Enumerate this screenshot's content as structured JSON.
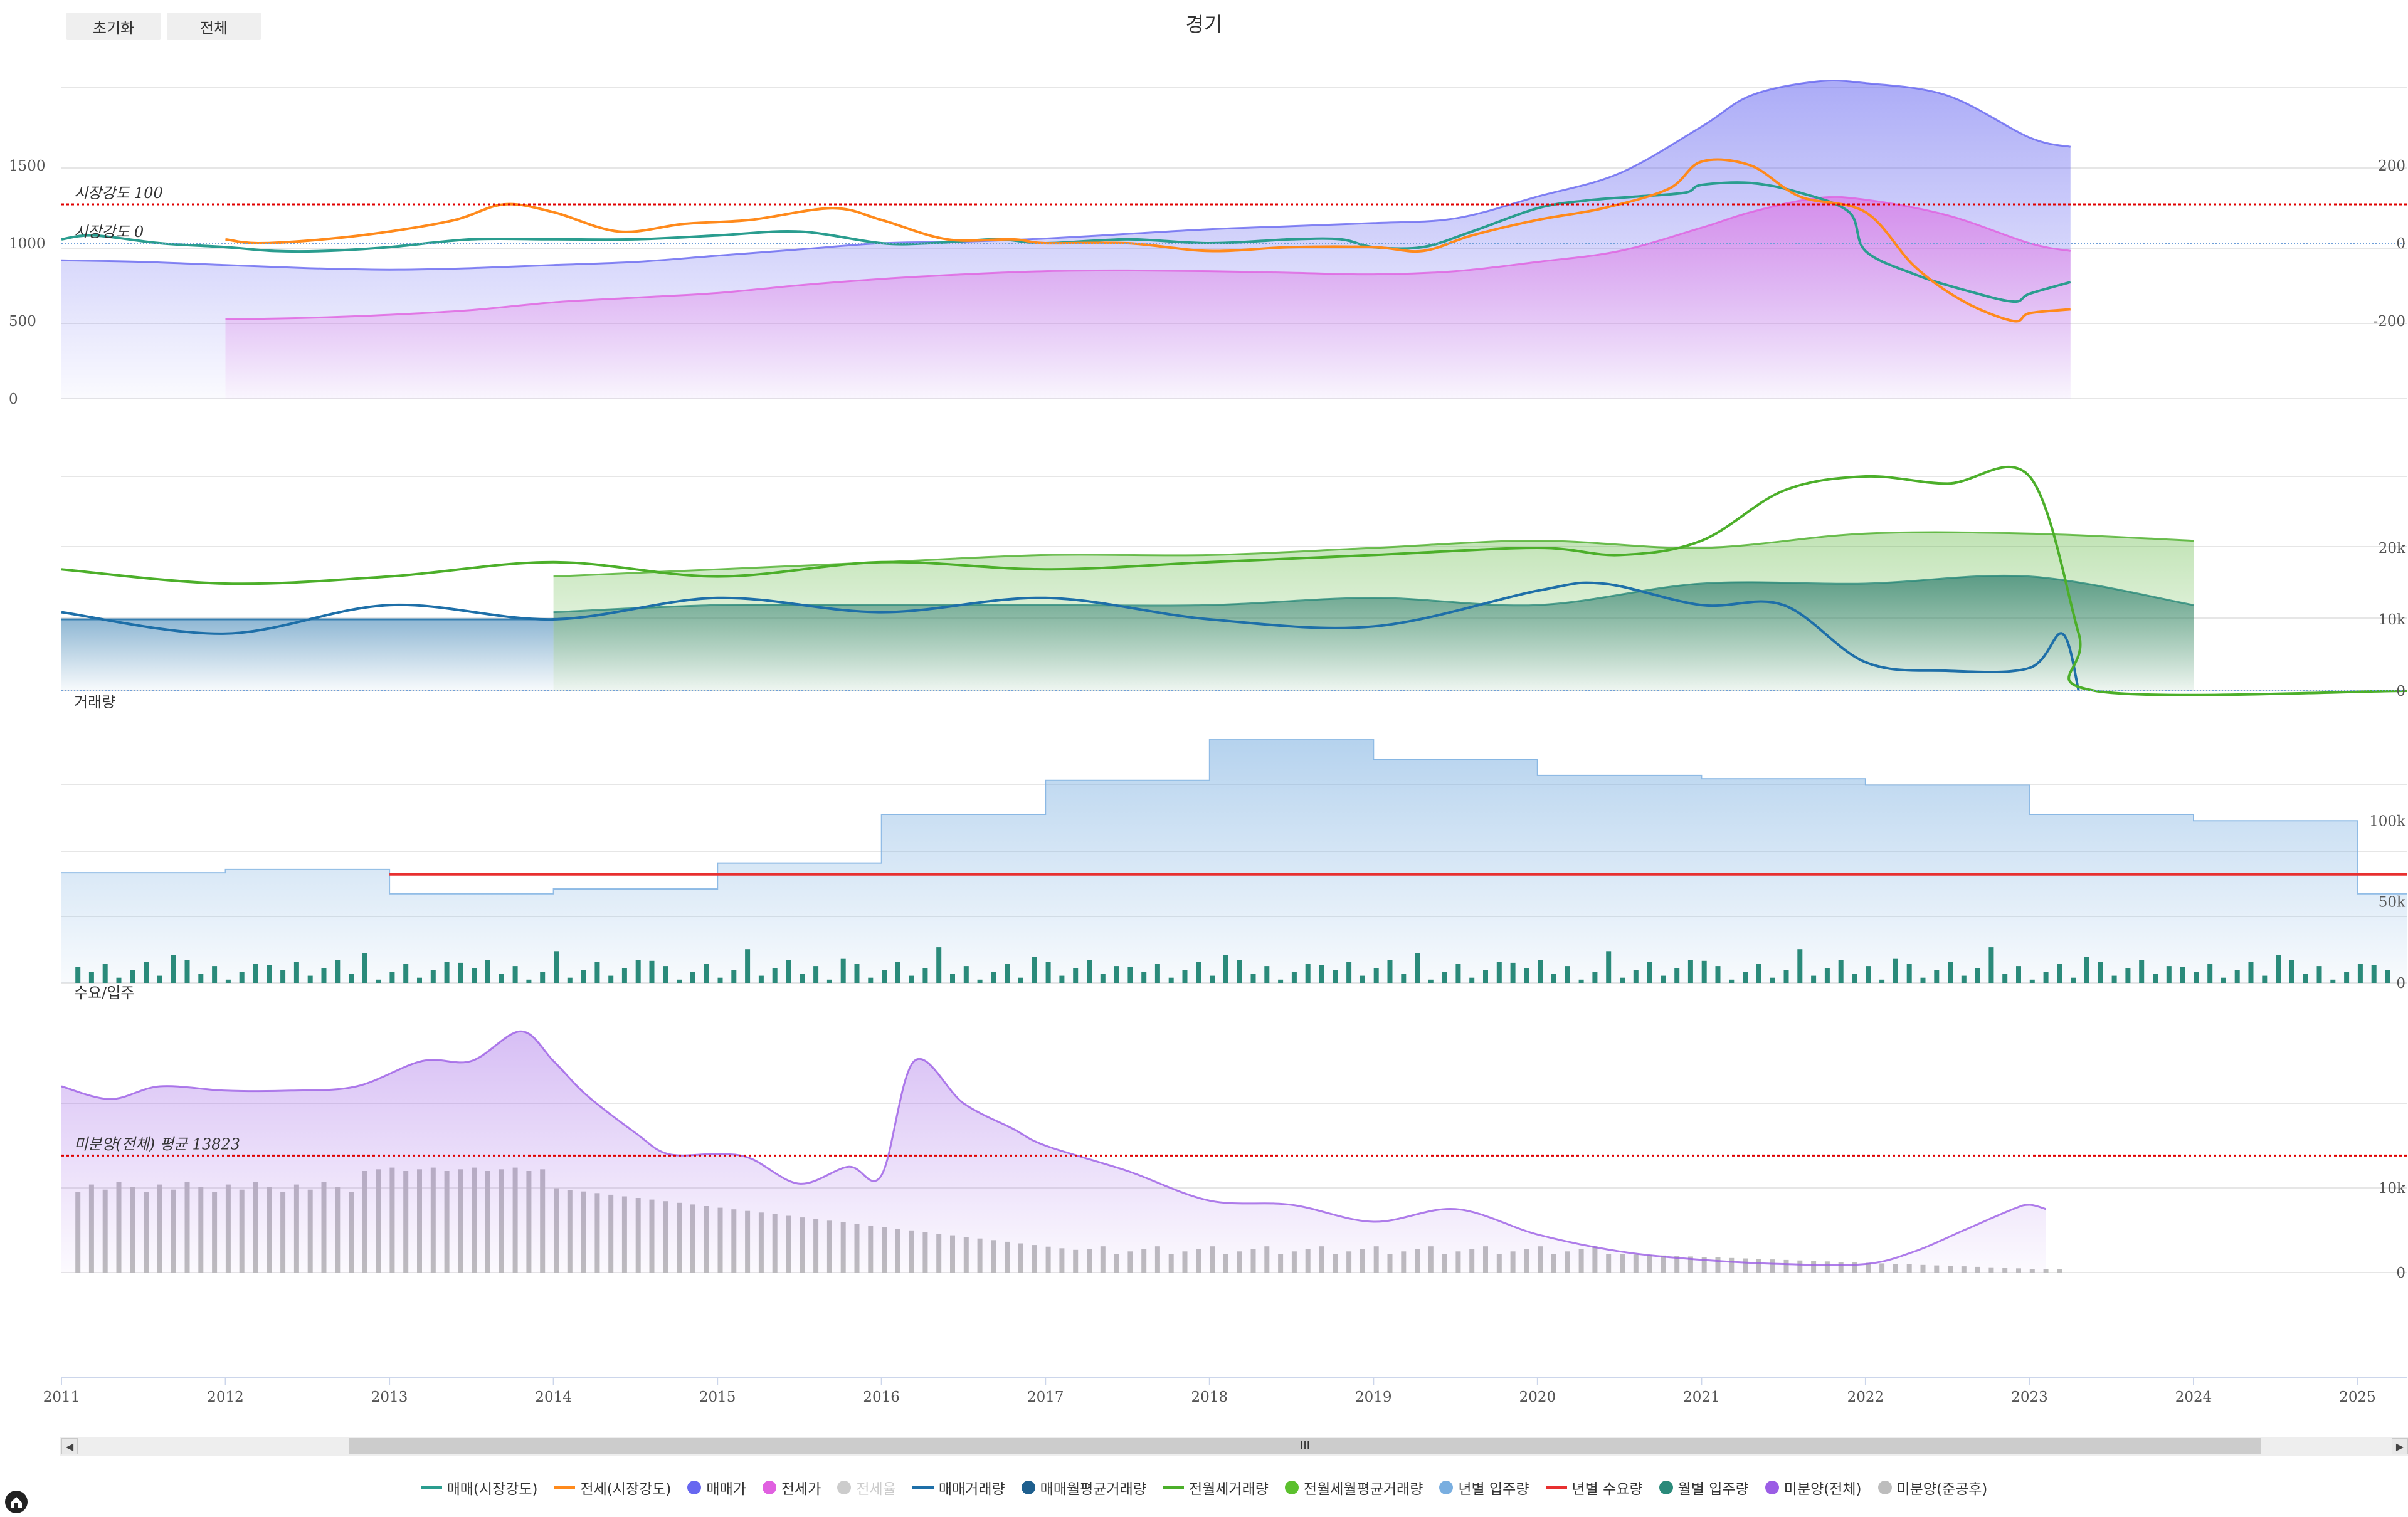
{
  "toolbar": {
    "reset_label": "초기화",
    "all_label": "전체"
  },
  "chart_data": {
    "type": "line",
    "title": "경기",
    "x_range": [
      2011,
      2025.3
    ],
    "x_ticks": [
      "2011",
      "2012",
      "2013",
      "2014",
      "2015",
      "2016",
      "2017",
      "2018",
      "2019",
      "2020",
      "2021",
      "2022",
      "2023",
      "2024",
      "2025"
    ],
    "panels": [
      {
        "name": "price",
        "left_axis": {
          "range": [
            0,
            2000
          ],
          "ticks": [
            "0",
            "500",
            "1000",
            "1500"
          ]
        },
        "right_axis": {
          "range": [
            -400,
            400
          ],
          "ticks": [
            "-200",
            "0",
            "200"
          ]
        },
        "annotations": [
          {
            "text": "시장강도 100",
            "right_value": 100,
            "style": "dotted",
            "color": "#e00000"
          },
          {
            "text": "시장강도 0",
            "right_value": 0,
            "style": "dotted",
            "color": "#6f9fd8"
          }
        ],
        "series": [
          {
            "name": "매매가",
            "type": "area",
            "axis": "left",
            "color": "#6767f0",
            "x": [
              2011,
              2011.5,
              2012,
              2012.5,
              2013,
              2013.5,
              2014,
              2014.5,
              2015,
              2015.5,
              2016,
              2016.5,
              2017,
              2017.5,
              2018,
              2018.5,
              2019,
              2019.5,
              2020,
              2020.5,
              2021,
              2021.3,
              2021.7,
              2022,
              2022.5,
              2023,
              2023.25
            ],
            "y": [
              890,
              880,
              860,
              840,
              830,
              840,
              860,
              880,
              920,
              960,
              1000,
              1010,
              1030,
              1060,
              1090,
              1110,
              1130,
              1160,
              1300,
              1450,
              1750,
              1950,
              2040,
              2030,
              1950,
              1680,
              1620
            ]
          },
          {
            "name": "전세가",
            "type": "area",
            "axis": "left",
            "color": "#e060e0",
            "x": [
              2012,
              2012.5,
              2013,
              2013.5,
              2014,
              2014.5,
              2015,
              2015.5,
              2016,
              2016.5,
              2017,
              2017.5,
              2018,
              2018.5,
              2019,
              2019.5,
              2020,
              2020.5,
              2021,
              2021.3,
              2021.7,
              2022,
              2022.5,
              2023,
              2023.25
            ],
            "y": [
              510,
              520,
              540,
              570,
              620,
              650,
              680,
              730,
              770,
              800,
              820,
              825,
              820,
              810,
              800,
              820,
              880,
              950,
              1100,
              1200,
              1290,
              1280,
              1180,
              1000,
              950
            ]
          },
          {
            "name": "매매(시장강도)",
            "type": "line",
            "axis": "right",
            "color": "#2a9d8f",
            "x": [
              2011,
              2011.2,
              2011.6,
              2012,
              2012.3,
              2012.6,
              2013,
              2013.5,
              2014,
              2014.5,
              2015,
              2015.5,
              2016,
              2016.3,
              2016.7,
              2017,
              2017.5,
              2018,
              2018.5,
              2018.8,
              2019,
              2019.3,
              2019.6,
              2020,
              2020.3,
              2020.6,
              2020.9,
              2021,
              2021.3,
              2021.6,
              2021.9,
              2022,
              2022.3,
              2022.6,
              2022.9,
              2023,
              2023.25
            ],
            "y": [
              10,
              20,
              0,
              -10,
              -20,
              -20,
              -10,
              10,
              10,
              10,
              20,
              30,
              0,
              0,
              10,
              0,
              10,
              0,
              10,
              10,
              -10,
              -10,
              30,
              90,
              110,
              120,
              130,
              150,
              155,
              130,
              80,
              -20,
              -80,
              -120,
              -150,
              -130,
              -100
            ]
          },
          {
            "name": "전세(시장강도)",
            "type": "line",
            "axis": "right",
            "color": "#ff8a1c",
            "x": [
              2012,
              2012.2,
              2012.6,
              2013,
              2013.4,
              2013.7,
              2014,
              2014.4,
              2014.8,
              2015.2,
              2015.7,
              2016,
              2016.4,
              2016.8,
              2017,
              2017.5,
              2018,
              2018.5,
              2019,
              2019.3,
              2019.6,
              2020,
              2020.4,
              2020.8,
              2021,
              2021.3,
              2021.6,
              2022,
              2022.3,
              2022.6,
              2022.9,
              2023,
              2023.25
            ],
            "y": [
              10,
              0,
              10,
              30,
              60,
              100,
              80,
              30,
              50,
              60,
              90,
              60,
              10,
              10,
              0,
              0,
              -20,
              -10,
              -10,
              -20,
              20,
              60,
              90,
              140,
              210,
              200,
              120,
              80,
              -60,
              -150,
              -200,
              -180,
              -170
            ]
          }
        ]
      },
      {
        "name": "volume",
        "label": "거래량",
        "right_axis": {
          "range": [
            0,
            30000
          ],
          "ticks": [
            "0",
            "10k",
            "20k"
          ]
        },
        "series": [
          {
            "name": "매매거래량",
            "type": "line",
            "color": "#1e6fa8",
            "x": [
              2011,
              2012,
              2013,
              2014,
              2015,
              2016,
              2017,
              2018,
              2019,
              2020,
              2020.4,
              2021,
              2021.5,
              2022,
              2022.5,
              2023,
              2023.2,
              2023.3
            ],
            "y": [
              11000,
              8000,
              12000,
              10000,
              13000,
              11000,
              13000,
              10000,
              9000,
              14000,
              15000,
              12000,
              12000,
              4000,
              2800,
              3200,
              8000,
              0
            ]
          },
          {
            "name": "전월세거래량",
            "type": "line",
            "color": "#4caf2a",
            "x": [
              2011,
              2012,
              2013,
              2014,
              2015,
              2016,
              2017,
              2018,
              2019,
              2020,
              2020.5,
              2021,
              2021.5,
              2022,
              2022.5,
              2023,
              2023.3,
              2023.4,
              2025.3
            ],
            "y": [
              17000,
              15000,
              16000,
              18000,
              16000,
              18000,
              17000,
              18000,
              19000,
              20000,
              19000,
              21000,
              28000,
              30000,
              29000,
              30000,
              8000,
              0,
              0
            ]
          },
          {
            "name": "매매월평균거래량",
            "type": "area",
            "color": "#1e6fa8",
            "x": [
              2011,
              2012,
              2013,
              2014
            ],
            "y": [
              10000,
              10000,
              10000,
              10000
            ]
          },
          {
            "name": "전월세월평균거래량",
            "type": "area",
            "color": "#4caf2a",
            "x": [
              2014,
              2015,
              2016,
              2017,
              2018,
              2019,
              2020,
              2021,
              2022,
              2023,
              2024
            ],
            "y": [
              16000,
              17000,
              18000,
              19000,
              19000,
              20000,
              21000,
              20000,
              22000,
              22000,
              21000
            ]
          },
          {
            "name": "월별 입주량",
            "type": "area",
            "color": "#2a8a7a",
            "x": [
              2014,
              2015,
              2016,
              2017,
              2018,
              2019,
              2020,
              2021,
              2022,
              2023,
              2024
            ],
            "y": [
              11000,
              12000,
              12000,
              12000,
              12000,
              13000,
              12000,
              15000,
              15000,
              16000,
              12000
            ]
          }
        ]
      },
      {
        "name": "supply",
        "label": "수요/입주",
        "right_axis": {
          "range": [
            0,
            150000
          ],
          "ticks": [
            "0",
            "50k",
            "100k"
          ]
        },
        "series": [
          {
            "name": "년별 입주량",
            "type": "step-area",
            "color": "#79aee0",
            "x": [
              2011,
              2012,
              2013,
              2014,
              2015,
              2016,
              2017,
              2018,
              2019,
              2020,
              2021,
              2022,
              2023,
              2024,
              2025,
              2025.3
            ],
            "y": [
              68000,
              70000,
              55000,
              58000,
              74000,
              104000,
              125000,
              150000,
              138000,
              128000,
              126000,
              122000,
              104000,
              100000,
              55000,
              55000
            ]
          },
          {
            "name": "년별 수요량",
            "type": "line",
            "color": "#e83030",
            "x": [
              2013,
              2025.3
            ],
            "y": [
              67000,
              67000
            ]
          },
          {
            "name": "월별 입주량",
            "type": "bar",
            "color": "#2a8a7a",
            "note": "monthly completions, approx 2k–22k"
          }
        ]
      },
      {
        "name": "unsold",
        "right_axis": {
          "range": [
            0,
            30000
          ],
          "ticks": [
            "0",
            "10k"
          ]
        },
        "annotations": [
          {
            "text": "미분양(전체) 평균 13823",
            "value": 13823,
            "style": "dotted",
            "color": "#e00000"
          }
        ],
        "series": [
          {
            "name": "미분양(전체)",
            "type": "area",
            "color": "#9b5de5",
            "x": [
              2011,
              2011.3,
              2011.6,
              2012,
              2012.4,
              2012.8,
              2013.2,
              2013.5,
              2013.8,
              2014,
              2014.2,
              2014.5,
              2014.7,
              2015,
              2015.2,
              2015.5,
              2015.8,
              2016,
              2016.2,
              2016.5,
              2016.8,
              2017,
              2017.5,
              2018,
              2018.5,
              2019,
              2019.5,
              2020,
              2020.5,
              2021,
              2021.5,
              2022,
              2022.3,
              2022.6,
              2022.9,
              2023,
              2023.1
            ],
            "y": [
              22000,
              20500,
              22000,
              21500,
              21500,
              22000,
              25000,
              25000,
              28500,
              25000,
              21000,
              16500,
              14000,
              14000,
              13500,
              10500,
              12500,
              11500,
              25000,
              20000,
              17000,
              15000,
              12000,
              8500,
              8000,
              6000,
              7500,
              4500,
              2500,
              1500,
              1000,
              1000,
              2500,
              5000,
              7500,
              8000,
              7500
            ]
          },
          {
            "name": "미분양(준공후)",
            "type": "bar",
            "color": "#bdbdbd",
            "note": "monthly post-completion unsold, approx 7k–12k (2011–2014) declining to ~500 (2023)"
          }
        ]
      }
    ],
    "legend": [
      {
        "name": "매매(시장강도)",
        "symbol": "line",
        "color": "#2a9d8f"
      },
      {
        "name": "전세(시장강도)",
        "symbol": "line",
        "color": "#ff8a1c"
      },
      {
        "name": "매매가",
        "symbol": "dot",
        "color": "#6767f0"
      },
      {
        "name": "전세가",
        "symbol": "dot",
        "color": "#e060e0"
      },
      {
        "name": "전세율",
        "symbol": "dot",
        "color": "#cccccc",
        "disabled": true
      },
      {
        "name": "매매거래량",
        "symbol": "line",
        "color": "#1e6fa8"
      },
      {
        "name": "매매월평균거래량",
        "symbol": "dot",
        "color": "#1e5f8e"
      },
      {
        "name": "전월세거래량",
        "symbol": "line",
        "color": "#4caf2a"
      },
      {
        "name": "전월세월평균거래량",
        "symbol": "dot",
        "color": "#5cc02e"
      },
      {
        "name": "년별 입주량",
        "symbol": "dot",
        "color": "#79aee0"
      },
      {
        "name": "년별 수요량",
        "symbol": "line",
        "color": "#e83030"
      },
      {
        "name": "월별 입주량",
        "symbol": "dot",
        "color": "#2a8a7a"
      },
      {
        "name": "미분양(전체)",
        "symbol": "dot",
        "color": "#9b5de5"
      },
      {
        "name": "미분양(준공후)",
        "symbol": "dot",
        "color": "#bdbdbd"
      }
    ]
  },
  "navigator": {
    "thumb_label": "III",
    "left_arrow": "◀",
    "right_arrow": "▶"
  }
}
